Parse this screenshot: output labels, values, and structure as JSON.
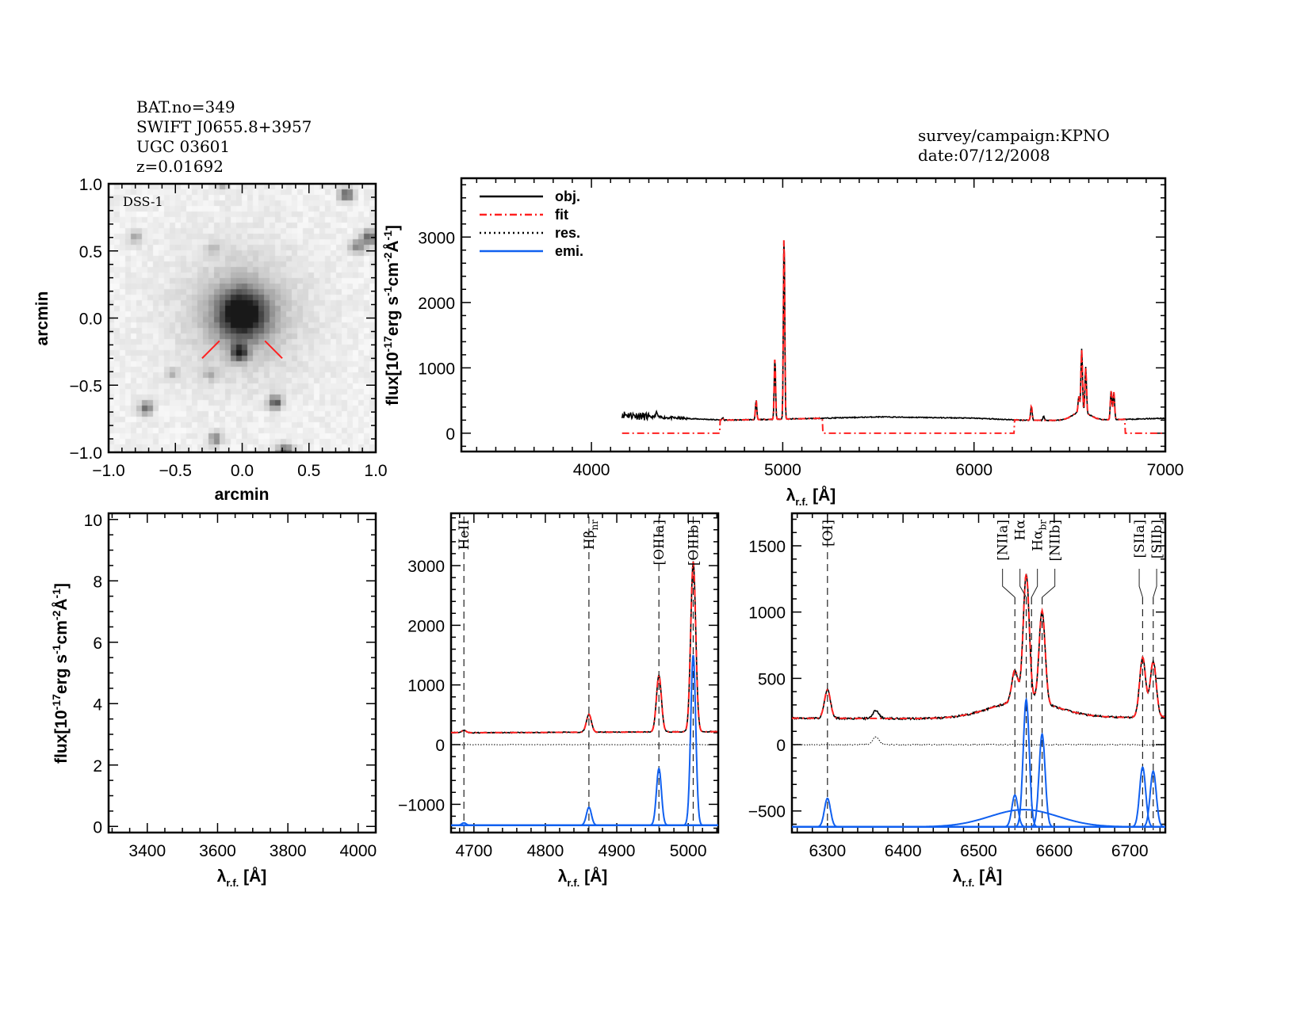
{
  "header": {
    "left": [
      "BAT.no=349",
      "SWIFT J0655.8+3957",
      "UGC 03601",
      "z=0.01692"
    ],
    "right": [
      "survey/campaign:KPNO",
      "date:07/12/2008"
    ]
  },
  "colors": {
    "obj": "#000000",
    "fit": "#ff2020",
    "res": "#000000",
    "emi": "#1060f0",
    "marker": "#ff2020"
  },
  "chart_data": [
    {
      "id": "image",
      "type": "heatmap",
      "label": "DSS-1",
      "xlabel": "arcmin",
      "ylabel": "arcmin",
      "xlim": [
        -1.0,
        1.0
      ],
      "ylim": [
        -1.0,
        1.0
      ],
      "xticks": [
        -1.0,
        -0.5,
        0.0,
        0.5,
        1.0
      ],
      "xtick_labels": [
        "−1.0",
        "−0.5",
        "0.0",
        "0.5",
        "1.0"
      ],
      "yticks": [
        -1.0,
        -0.5,
        0.0,
        0.5,
        1.0
      ],
      "ytick_labels": [
        "−1.0",
        "−0.5",
        "0.0",
        "0.5",
        "1.0"
      ],
      "sources": [
        {
          "x": 0.0,
          "y": 0.03,
          "brightness": 1.0,
          "size": 0.13
        },
        {
          "x": -0.02,
          "y": -0.26,
          "brightness": 0.95,
          "size": 0.04
        },
        {
          "x": 0.78,
          "y": 0.92,
          "brightness": 0.8,
          "size": 0.035
        },
        {
          "x": 0.95,
          "y": 0.6,
          "brightness": 0.7,
          "size": 0.04
        },
        {
          "x": 0.86,
          "y": 0.53,
          "brightness": 0.55,
          "size": 0.035
        },
        {
          "x": -0.8,
          "y": 0.6,
          "brightness": 0.35,
          "size": 0.035
        },
        {
          "x": -0.72,
          "y": -0.67,
          "brightness": 0.65,
          "size": 0.035
        },
        {
          "x": 0.25,
          "y": -0.63,
          "brightness": 0.8,
          "size": 0.035
        },
        {
          "x": -0.2,
          "y": -0.9,
          "brightness": 0.55,
          "size": 0.035
        },
        {
          "x": 0.32,
          "y": -1.0,
          "brightness": 0.8,
          "size": 0.04
        },
        {
          "x": -0.52,
          "y": -0.42,
          "brightness": 0.3,
          "size": 0.03
        },
        {
          "x": -0.24,
          "y": -0.42,
          "brightness": 0.35,
          "size": 0.03
        },
        {
          "x": -0.22,
          "y": 0.52,
          "brightness": 0.25,
          "size": 0.03
        },
        {
          "x": -0.15,
          "y": 1.0,
          "brightness": 0.35,
          "size": 0.03
        }
      ],
      "markers": [
        [
          [
            -0.3,
            -0.3
          ],
          [
            -0.17,
            -0.17
          ]
        ],
        [
          [
            0.17,
            -0.17
          ],
          [
            0.3,
            -0.3
          ]
        ]
      ]
    },
    {
      "id": "full",
      "type": "line",
      "xlabel": "λ",
      "xlabel_sub": "r.f.",
      "xlabel_unit": " [Å]",
      "ylabel": "flux[10",
      "ylabel_exp": "-17",
      "ylabel_rest": "erg s",
      "ylabel_exp2": "-1",
      "ylabel_rest2": "cm",
      "ylabel_exp3": "-2",
      "ylabel_rest3": "Å",
      "ylabel_exp4": "-1",
      "ylabel_end": "]",
      "xlim": [
        3320,
        7000
      ],
      "ylim": [
        -280,
        3900
      ],
      "xticks": [
        4000,
        5000,
        6000,
        7000
      ],
      "xtick_labels": [
        "4000",
        "5000",
        "6000",
        "7000"
      ],
      "yticks": [
        0,
        1000,
        2000,
        3000
      ],
      "ytick_labels": [
        "0",
        "1000",
        "2000",
        "3000"
      ],
      "xminor": 100,
      "yminor": 200,
      "obs_range": [
        4160,
        7000
      ],
      "fit_zero_ranges": [
        [
          4160,
          4670
        ],
        [
          5210,
          6210
        ],
        [
          6790,
          7000
        ]
      ],
      "legend": {
        "position": "top-left",
        "entries": [
          {
            "key": "obj",
            "label": "obj."
          },
          {
            "key": "fit",
            "label": "fit"
          },
          {
            "key": "res",
            "label": "res."
          },
          {
            "key": "emi",
            "label": "emi."
          }
        ]
      }
    },
    {
      "id": "blue-empty",
      "type": "line",
      "xlim": [
        3290,
        4050
      ],
      "ylim": [
        -0.2,
        10.2
      ],
      "xticks": [
        3400,
        3600,
        3800,
        4000
      ],
      "xtick_labels": [
        "3400",
        "3600",
        "3800",
        "4000"
      ],
      "yticks": [
        0,
        2,
        4,
        6,
        8,
        10
      ],
      "ytick_labels": [
        "0",
        "2",
        "4",
        "6",
        "8",
        "10"
      ],
      "xminor": 50,
      "yminor": 0.5
    },
    {
      "id": "hbeta",
      "type": "line",
      "xlim": [
        4668,
        5042
      ],
      "ylim": [
        -1473,
        3876
      ],
      "xticks": [
        4700,
        4800,
        4900,
        5000
      ],
      "xtick_labels": [
        "4700",
        "4800",
        "4900",
        "5000"
      ],
      "yticks": [
        -1000,
        0,
        1000,
        2000,
        3000
      ],
      "ytick_labels": [
        "−1000",
        "0",
        "1000",
        "2000",
        "3000"
      ],
      "xminor": 20,
      "yminor": 200,
      "emi_offset": -1350,
      "line_markers": [
        {
          "wave": 4686,
          "label": "HeII",
          "sub": ""
        },
        {
          "wave": 4861,
          "label": "Hβ",
          "sub": "nr"
        },
        {
          "wave": 4959,
          "label": "[OIIIa]",
          "sub": ""
        },
        {
          "wave": 5007,
          "label": "[OIIIb]",
          "sub": ""
        }
      ]
    },
    {
      "id": "halpha",
      "type": "line",
      "xlim": [
        6253,
        6747
      ],
      "ylim": [
        -663,
        1745
      ],
      "xticks": [
        6300,
        6400,
        6500,
        6600,
        6700
      ],
      "xtick_labels": [
        "6300",
        "6400",
        "6500",
        "6600",
        "6700"
      ],
      "yticks": [
        -500,
        0,
        500,
        1000,
        1500
      ],
      "ytick_labels": [
        "−500",
        "0",
        "500",
        "1000",
        "1500"
      ],
      "xminor": 20,
      "yminor": 100,
      "emi_offset": -620,
      "line_markers": [
        {
          "wave": 6300,
          "label": "[OI]",
          "sub": ""
        },
        {
          "wave": 6548,
          "label": "[NIIa]",
          "sub": ""
        },
        {
          "wave": 6563,
          "label": "Hα",
          "sub": ""
        },
        {
          "wave": 6570,
          "label": "Hα",
          "sub": "br"
        },
        {
          "wave": 6584,
          "label": "[NIIb]",
          "sub": ""
        },
        {
          "wave": 6717,
          "label": "[SIIa]",
          "sub": ""
        },
        {
          "wave": 6731,
          "label": "[SIIb]",
          "sub": ""
        }
      ]
    }
  ],
  "spectrum_model": {
    "continuum": [
      [
        4160,
        290
      ],
      [
        4300,
        250
      ],
      [
        4500,
        225
      ],
      [
        4700,
        200
      ],
      [
        5000,
        215
      ],
      [
        5500,
        250
      ],
      [
        6000,
        230
      ],
      [
        6250,
        200
      ],
      [
        6500,
        195
      ],
      [
        6700,
        205
      ],
      [
        7000,
        230
      ]
    ],
    "lines": [
      {
        "name": "HeII",
        "center": 4686,
        "amp": 40,
        "sigma": 3
      },
      {
        "name": "Hb_nr",
        "center": 4861,
        "amp": 300,
        "sigma": 3.5
      },
      {
        "name": "OIIIa",
        "center": 4959,
        "amp": 950,
        "sigma": 3.5
      },
      {
        "name": "OIIIb",
        "center": 5007,
        "amp": 2850,
        "sigma": 3.5
      },
      {
        "name": "OI",
        "center": 6300,
        "amp": 215,
        "sigma": 4
      },
      {
        "name": "NIIa",
        "center": 6548,
        "amp": 240,
        "sigma": 4
      },
      {
        "name": "Ha_nr",
        "center": 6563,
        "amp": 960,
        "sigma": 4
      },
      {
        "name": "Ha_br",
        "center": 6560,
        "amp": 130,
        "sigma": 45
      },
      {
        "name": "NIIb",
        "center": 6584,
        "amp": 700,
        "sigma": 4
      },
      {
        "name": "SIIa",
        "center": 6717,
        "amp": 450,
        "sigma": 4
      },
      {
        "name": "SIIb",
        "center": 6731,
        "amp": 420,
        "sigma": 4
      }
    ],
    "unfit_features": [
      {
        "center": 4340,
        "amp": 70,
        "sigma": 5
      },
      {
        "center": 6364,
        "amp": 60,
        "sigma": 4
      }
    ]
  }
}
